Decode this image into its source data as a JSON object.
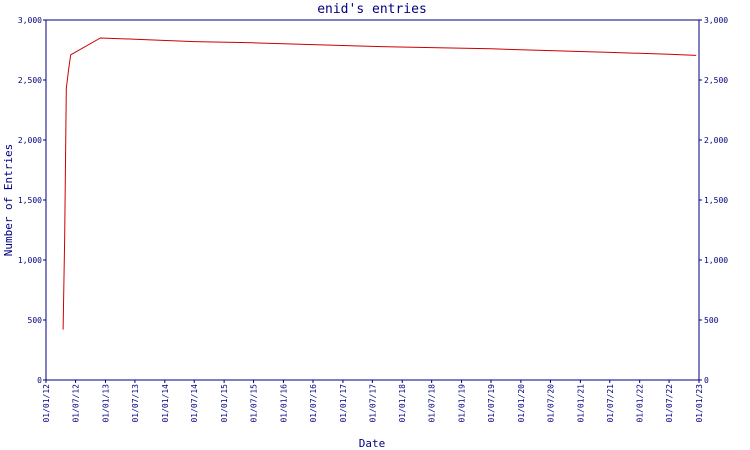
{
  "chart_data": {
    "type": "line",
    "title": "enid's entries",
    "xlabel": "Date",
    "ylabel": "Number of Entries",
    "ylim": [
      0,
      3000
    ],
    "xlim": [
      "2012-01-01",
      "2023-01-01"
    ],
    "y_ticks": [
      0,
      500,
      1000,
      1500,
      2000,
      2500,
      3000
    ],
    "y_tick_labels": [
      "0",
      "500",
      "1,000",
      "1,500",
      "2,000",
      "2,500",
      "3,000"
    ],
    "x_tick_labels": [
      "01/01/12",
      "01/07/12",
      "01/01/13",
      "01/07/13",
      "01/01/14",
      "01/07/14",
      "01/01/15",
      "01/07/15",
      "01/01/16",
      "01/07/16",
      "01/01/17",
      "01/07/17",
      "01/01/18",
      "01/07/18",
      "01/01/19",
      "01/07/19",
      "01/01/20",
      "01/07/20",
      "01/01/21",
      "01/07/21",
      "01/01/22",
      "01/07/22",
      "01/01/23"
    ],
    "x_ticks": [
      "2012-01-01",
      "2012-07-01",
      "2013-01-01",
      "2013-07-01",
      "2014-01-01",
      "2014-07-01",
      "2015-01-01",
      "2015-07-01",
      "2016-01-01",
      "2016-07-01",
      "2017-01-01",
      "2017-07-01",
      "2018-01-01",
      "2018-07-01",
      "2019-01-01",
      "2019-07-01",
      "2020-01-01",
      "2020-07-01",
      "2021-01-01",
      "2021-07-01",
      "2022-01-01",
      "2022-07-01",
      "2023-01-01"
    ],
    "grid": false,
    "right_axis": true,
    "series": [
      {
        "color": "#cc0000",
        "points": [
          {
            "x": "2012-04-15",
            "y": 420
          },
          {
            "x": "2012-04-25",
            "y": 1200
          },
          {
            "x": "2012-05-05",
            "y": 2430
          },
          {
            "x": "2012-05-20",
            "y": 2600
          },
          {
            "x": "2012-06-01",
            "y": 2710
          },
          {
            "x": "2012-12-01",
            "y": 2850
          },
          {
            "x": "2013-07-01",
            "y": 2840
          },
          {
            "x": "2014-07-01",
            "y": 2820
          },
          {
            "x": "2015-07-01",
            "y": 2810
          },
          {
            "x": "2016-07-01",
            "y": 2795
          },
          {
            "x": "2017-07-01",
            "y": 2780
          },
          {
            "x": "2018-07-01",
            "y": 2770
          },
          {
            "x": "2019-07-01",
            "y": 2760
          },
          {
            "x": "2020-07-01",
            "y": 2745
          },
          {
            "x": "2021-07-01",
            "y": 2730
          },
          {
            "x": "2022-07-01",
            "y": 2715
          },
          {
            "x": "2022-12-15",
            "y": 2705
          }
        ]
      }
    ]
  }
}
